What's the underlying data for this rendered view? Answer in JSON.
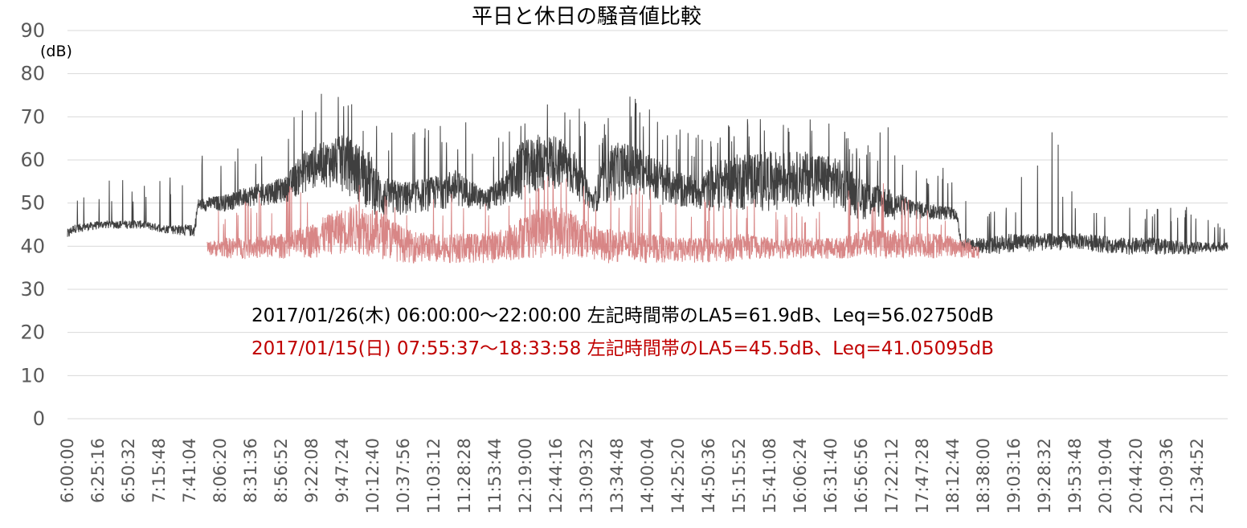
{
  "chart_data": {
    "type": "line",
    "title": "平日と休日の騒音値比較",
    "ylabel": "(dB)",
    "ylim": [
      0,
      90
    ],
    "yticks": [
      0,
      10,
      20,
      30,
      40,
      50,
      60,
      70,
      80,
      90
    ],
    "grid": true,
    "x_range": [
      "6:00:00",
      "22:00:00"
    ],
    "x_ticks": [
      "6:00:00",
      "6:25:16",
      "6:50:32",
      "7:15:48",
      "7:41:04",
      "8:06:20",
      "8:31:36",
      "8:56:52",
      "9:22:08",
      "9:47:24",
      "10:12:40",
      "10:37:56",
      "11:03:12",
      "11:28:28",
      "11:53:44",
      "12:19:00",
      "12:44:16",
      "13:09:32",
      "13:34:48",
      "14:00:04",
      "14:25:20",
      "14:50:36",
      "15:15:52",
      "15:41:08",
      "16:06:24",
      "16:31:40",
      "16:56:56",
      "17:22:12",
      "17:47:28",
      "18:12:44",
      "18:38:00",
      "19:03:16",
      "19:28:32",
      "19:53:48",
      "20:19:04",
      "20:44:20",
      "21:09:36",
      "21:34:52"
    ],
    "series": [
      {
        "color": "#3f3f3f",
        "start": "6:00:00",
        "end": "22:00:00",
        "profile": {
          "time": [
            "6:00:00",
            "6:05:00",
            "6:30:00",
            "7:00:00",
            "7:20:00",
            "7:45:00",
            "7:48:00",
            "8:10:00",
            "8:30:00",
            "9:00:00",
            "9:15:00",
            "9:30:00",
            "9:50:00",
            "10:10:00",
            "10:20:00",
            "10:40:00",
            "11:00:00",
            "11:20:00",
            "11:30:00",
            "11:45:00",
            "12:00:00",
            "12:15:00",
            "12:30:00",
            "12:45:00",
            "13:00:00",
            "13:15:00",
            "13:20:00",
            "13:30:00",
            "13:45:00",
            "14:00:00",
            "14:20:00",
            "14:40:00",
            "15:00:00",
            "15:20:00",
            "15:40:00",
            "16:00:00",
            "16:20:00",
            "16:40:00",
            "16:55:00",
            "17:15:00",
            "17:30:00",
            "17:50:00",
            "18:15:00",
            "18:20:00",
            "18:40:00",
            "19:00:00",
            "19:30:00",
            "20:00:00",
            "20:30:00",
            "21:00:00",
            "21:30:00",
            "22:00:00"
          ],
          "low": [
            41,
            43,
            44,
            44,
            43,
            42,
            48,
            48,
            49,
            50,
            52,
            54,
            52,
            48,
            46,
            47,
            48,
            49,
            49,
            48,
            49,
            50,
            52,
            53,
            51,
            48,
            48,
            50,
            51,
            50,
            49,
            48,
            48,
            48,
            48,
            49,
            49,
            48,
            46,
            46,
            46,
            46,
            46,
            39,
            38,
            38,
            39,
            39,
            38,
            38,
            38,
            39
          ],
          "high": [
            44,
            45,
            46,
            46,
            45,
            45,
            51,
            52,
            54,
            56,
            62,
            64,
            66,
            62,
            56,
            55,
            56,
            58,
            56,
            53,
            56,
            64,
            66,
            66,
            62,
            52,
            58,
            64,
            64,
            62,
            58,
            56,
            60,
            62,
            62,
            62,
            62,
            60,
            56,
            54,
            52,
            50,
            49,
            42,
            42,
            43,
            43,
            43,
            42,
            42,
            41,
            41
          ],
          "spike": [
            48,
            53,
            55,
            57,
            60,
            65,
            64,
            62,
            64,
            68,
            75,
            76,
            76,
            70,
            68,
            66,
            68,
            68,
            70,
            64,
            66,
            72,
            74,
            76,
            74,
            65,
            64,
            74,
            76,
            74,
            68,
            66,
            67,
            70,
            70,
            70,
            70,
            68,
            65,
            68,
            68,
            60,
            58,
            52,
            50,
            52,
            72,
            48,
            50,
            50,
            49,
            44
          ]
        }
      },
      {
        "color": "#d67f7f",
        "start": "7:55:37",
        "end": "18:33:58",
        "profile": {
          "time": [
            "7:55:37",
            "8:10:00",
            "8:30:00",
            "9:00:00",
            "9:20:00",
            "9:40:00",
            "10:00:00",
            "10:20:00",
            "10:40:00",
            "11:00:00",
            "11:20:00",
            "11:40:00",
            "12:00:00",
            "12:20:00",
            "12:40:00",
            "13:00:00",
            "13:20:00",
            "13:40:00",
            "14:00:00",
            "14:20:00",
            "14:40:00",
            "15:00:00",
            "15:20:00",
            "15:40:00",
            "16:00:00",
            "16:20:00",
            "16:40:00",
            "17:00:00",
            "17:20:00",
            "17:40:00",
            "18:00:00",
            "18:20:00",
            "18:33:58"
          ],
          "low": [
            38,
            37,
            37,
            37,
            37,
            38,
            38,
            37,
            36,
            36,
            36,
            36,
            36,
            37,
            37,
            37,
            36,
            36,
            36,
            36,
            36,
            36,
            37,
            37,
            37,
            37,
            37,
            37,
            37,
            37,
            37,
            37,
            37
          ],
          "high": [
            41,
            42,
            42,
            43,
            45,
            48,
            50,
            48,
            44,
            43,
            43,
            43,
            44,
            48,
            50,
            48,
            44,
            44,
            43,
            42,
            42,
            42,
            43,
            42,
            42,
            42,
            42,
            44,
            44,
            43,
            43,
            42,
            41
          ],
          "spike": [
            46,
            50,
            52,
            54,
            55,
            58,
            57,
            56,
            52,
            52,
            53,
            53,
            52,
            55,
            57,
            56,
            52,
            55,
            54,
            52,
            52,
            50,
            52,
            50,
            50,
            50,
            52,
            55,
            56,
            50,
            48,
            46,
            44
          ]
        }
      }
    ],
    "annotations": [
      {
        "text": "2017/01/26(木) 06:00:00〜22:00:00 左記時間帯のLA5=61.9dB、Leq=56.02750dB",
        "color": "#000000"
      },
      {
        "text": "2017/01/15(日) 07:55:37〜18:33:58 左記時間帯のLA5=45.5dB、Leq=41.05095dB",
        "color": "#c00000"
      }
    ]
  }
}
